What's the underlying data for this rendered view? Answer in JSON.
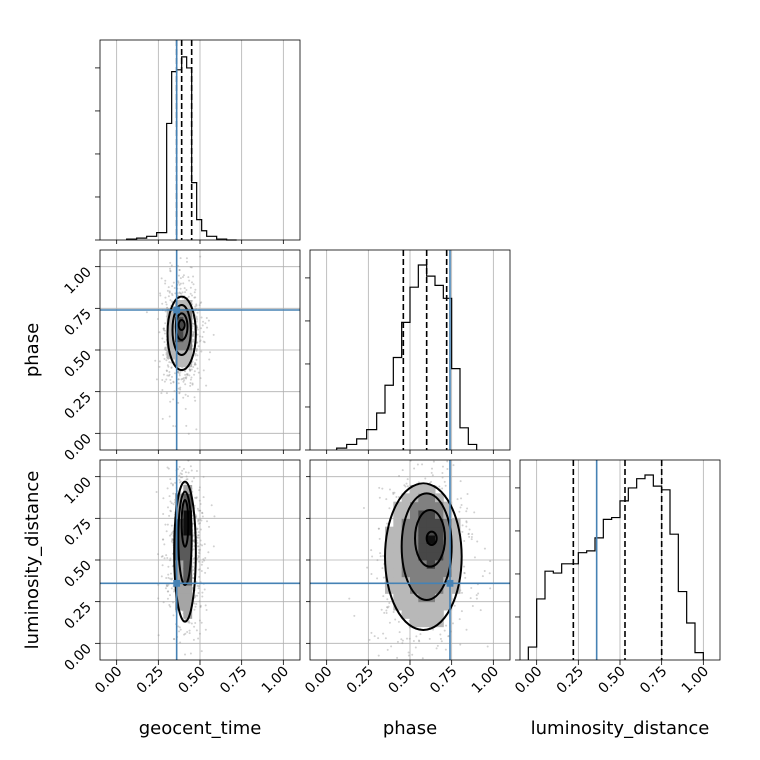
{
  "chart_data": {
    "type": "corner",
    "parameters": [
      "geocent_time",
      "phase",
      "luminosity_distance"
    ],
    "axis_range": [
      -0.1,
      1.1
    ],
    "ticks": [
      0.0,
      0.25,
      0.5,
      0.75,
      1.0
    ],
    "tick_labels": [
      "0.00",
      "0.25",
      "0.50",
      "0.75",
      "1.00"
    ],
    "grid": true,
    "colors": {
      "truth": "#4682b4",
      "histogram": "#000000",
      "samples": "#9a9a9a"
    },
    "truths": {
      "geocent_time": 0.36,
      "phase": 0.74,
      "luminosity_distance": 0.36
    },
    "quantiles": {
      "geocent_time": [
        0.36,
        0.39,
        0.45
      ],
      "phase": [
        0.46,
        0.6,
        0.72
      ],
      "luminosity_distance": [
        0.22,
        0.53,
        0.75
      ]
    },
    "histograms": [
      {
        "parameter": "geocent_time",
        "bin_edges": [
          0.06,
          0.12,
          0.18,
          0.24,
          0.3,
          0.33,
          0.36,
          0.39,
          0.42,
          0.45,
          0.48,
          0.51,
          0.54,
          0.6,
          0.66,
          0.72
        ],
        "counts": [
          0.005,
          0.01,
          0.02,
          0.04,
          0.63,
          0.91,
          0.92,
          0.99,
          0.93,
          0.31,
          0.11,
          0.05,
          0.02,
          0.005,
          0.0
        ]
      },
      {
        "parameter": "phase",
        "bin_edges": [
          0.06,
          0.12,
          0.18,
          0.24,
          0.3,
          0.35,
          0.4,
          0.45,
          0.5,
          0.55,
          0.6,
          0.65,
          0.7,
          0.75,
          0.8,
          0.85,
          0.9
        ],
        "counts": [
          0.01,
          0.03,
          0.06,
          0.11,
          0.2,
          0.35,
          0.5,
          0.69,
          0.88,
          1.0,
          0.94,
          0.89,
          0.82,
          0.44,
          0.12,
          0.03
        ]
      },
      {
        "parameter": "luminosity_distance",
        "bin_edges": [
          -0.05,
          0.0,
          0.05,
          0.1,
          0.15,
          0.2,
          0.25,
          0.3,
          0.35,
          0.4,
          0.45,
          0.5,
          0.55,
          0.6,
          0.65,
          0.7,
          0.75,
          0.8,
          0.85,
          0.9,
          0.95,
          1.0
        ],
        "counts": [
          0.07,
          0.33,
          0.48,
          0.47,
          0.52,
          0.52,
          0.58,
          0.59,
          0.66,
          0.76,
          0.77,
          0.86,
          0.93,
          0.98,
          1.0,
          0.94,
          0.92,
          0.68,
          0.37,
          0.2,
          0.04
        ]
      }
    ],
    "contours_2d": [
      {
        "x": "geocent_time",
        "y": "phase",
        "levels": [
          {
            "cx": 0.39,
            "cy": 0.6,
            "rx": 0.085,
            "ry": 0.22
          },
          {
            "cx": 0.39,
            "cy": 0.62,
            "rx": 0.055,
            "ry": 0.15
          },
          {
            "cx": 0.39,
            "cy": 0.64,
            "rx": 0.035,
            "ry": 0.08
          },
          {
            "cx": 0.39,
            "cy": 0.65,
            "rx": 0.018,
            "ry": 0.03
          }
        ],
        "spread": {
          "sx": 0.06,
          "sy": 0.18
        }
      },
      {
        "x": "geocent_time",
        "y": "luminosity_distance",
        "levels": [
          {
            "cx": 0.41,
            "cy": 0.55,
            "rx": 0.065,
            "ry": 0.42
          },
          {
            "cx": 0.41,
            "cy": 0.63,
            "rx": 0.04,
            "ry": 0.28
          },
          {
            "cx": 0.41,
            "cy": 0.72,
            "rx": 0.02,
            "ry": 0.14
          }
        ],
        "spread": {
          "sx": 0.06,
          "sy": 0.25
        }
      },
      {
        "x": "phase",
        "y": "luminosity_distance",
        "levels": [
          {
            "cx": 0.58,
            "cy": 0.52,
            "rx": 0.23,
            "ry": 0.44
          },
          {
            "cx": 0.6,
            "cy": 0.58,
            "rx": 0.15,
            "ry": 0.32
          },
          {
            "cx": 0.62,
            "cy": 0.63,
            "rx": 0.09,
            "ry": 0.17
          },
          {
            "cx": 0.63,
            "cy": 0.63,
            "rx": 0.03,
            "ry": 0.04
          }
        ],
        "spread": {
          "sx": 0.15,
          "sy": 0.26
        }
      }
    ]
  }
}
